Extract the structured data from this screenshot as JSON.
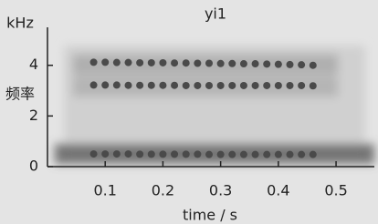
{
  "chart_data": {
    "type": "scatter",
    "title": "yi1",
    "ylabel_unit": "kHz",
    "ylabel": "频率",
    "xlabel": "time / s",
    "x": [
      0.08,
      0.1,
      0.12,
      0.14,
      0.16,
      0.18,
      0.2,
      0.22,
      0.24,
      0.26,
      0.28,
      0.3,
      0.32,
      0.34,
      0.36,
      0.38,
      0.4,
      0.42,
      0.44,
      0.46
    ],
    "series": [
      {
        "color": "#4a4a4a",
        "values": [
          4.12,
          4.12,
          4.11,
          4.11,
          4.1,
          4.1,
          4.1,
          4.09,
          4.09,
          4.08,
          4.08,
          4.07,
          4.07,
          4.06,
          4.06,
          4.05,
          4.04,
          4.03,
          4.02,
          4.0
        ]
      },
      {
        "color": "#4a4a4a",
        "values": [
          3.22,
          3.22,
          3.22,
          3.21,
          3.21,
          3.21,
          3.21,
          3.21,
          3.2,
          3.2,
          3.2,
          3.2,
          3.2,
          3.2,
          3.2,
          3.2,
          3.2,
          3.2,
          3.2,
          3.19
        ]
      },
      {
        "color": "#4a4a4a",
        "values": [
          0.5,
          0.5,
          0.5,
          0.5,
          0.49,
          0.49,
          0.49,
          0.49,
          0.49,
          0.49,
          0.48,
          0.48,
          0.48,
          0.48,
          0.48,
          0.48,
          0.48,
          0.48,
          0.48,
          0.48
        ]
      }
    ],
    "xlim": [
      0,
      0.56
    ],
    "ylim": [
      0,
      5.5
    ],
    "xticks": [
      0.1,
      0.2,
      0.3,
      0.4,
      0.5
    ],
    "yticks": [
      0,
      2,
      4
    ]
  }
}
